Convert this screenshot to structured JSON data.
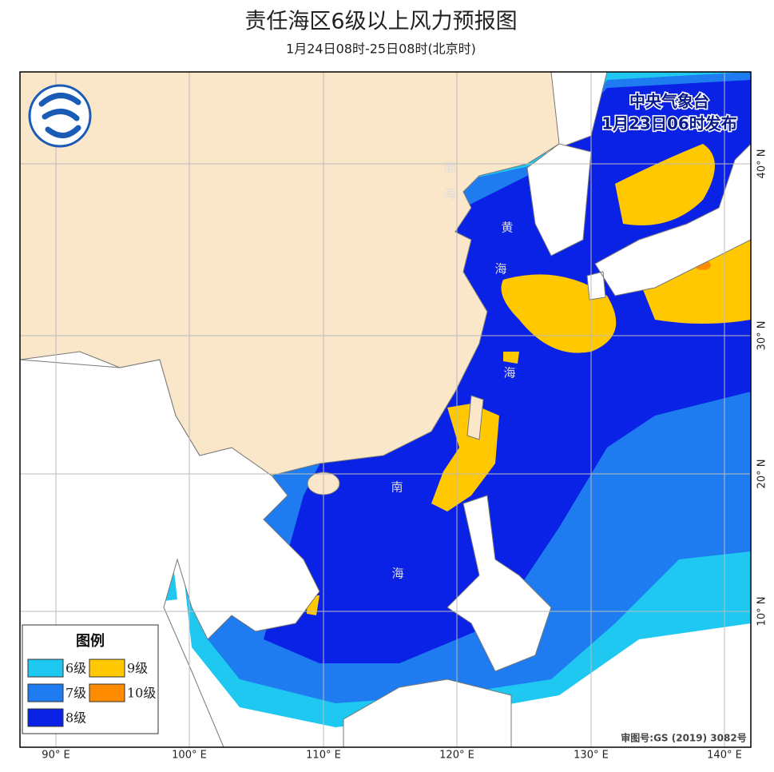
{
  "header": {
    "title": "责任海区6级以上风力预报图",
    "subtitle": "1月24日08时-25日08时(北京时)"
  },
  "issuer": {
    "agency": "中央气象台",
    "issued": "1月23日06时发布"
  },
  "legend": {
    "title": "图例",
    "items": [
      {
        "label": "6级",
        "color": "#1ec8f0"
      },
      {
        "label": "9级",
        "color": "#ffc800"
      },
      {
        "label": "7级",
        "color": "#1e7cf0"
      },
      {
        "label": "10级",
        "color": "#ff8c00"
      },
      {
        "label": "8级",
        "color": "#0a22e6"
      }
    ]
  },
  "map": {
    "lon_labels": [
      "90° E",
      "100° E",
      "110° E",
      "120° E",
      "130° E",
      "140° E"
    ],
    "lat_labels": [
      "40° N",
      "30° N",
      "20° N",
      "10° N"
    ],
    "sea_labels": [
      "渤",
      "海",
      "黄",
      "海",
      "海",
      "南",
      "海"
    ]
  },
  "approval": "审图号:GS (2019) 3082号"
}
